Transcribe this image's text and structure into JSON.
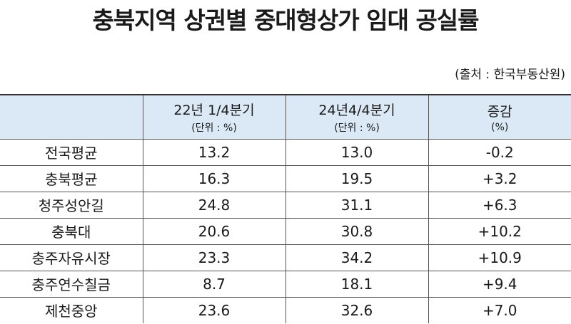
{
  "title": "충북지역 상권별 중대형상가 임대 공실률",
  "source": "(출처 : 한국부동산원)",
  "table": {
    "columns": [
      {
        "label": "22년 1/4분기",
        "unit": "(단위 : %)"
      },
      {
        "label": "24년4/4분기",
        "unit": "(단위 : %)"
      },
      {
        "label": "증감",
        "unit": "(%)"
      }
    ],
    "rows": [
      [
        "전국평균",
        "13.2",
        "13.0",
        "-0.2"
      ],
      [
        "충북평균",
        "16.3",
        "19.5",
        "+3.2"
      ],
      [
        "청주성안길",
        "24.8",
        "31.1",
        "+6.3"
      ],
      [
        "충북대",
        "20.6",
        "30.8",
        "+10.2"
      ],
      [
        "충주자유시장",
        "23.3",
        "34.2",
        "+10.9"
      ],
      [
        "충주연수칠금",
        "8.7",
        "18.1",
        "+9.4"
      ],
      [
        "제천중앙",
        "23.6",
        "32.6",
        "+7.0"
      ]
    ]
  }
}
